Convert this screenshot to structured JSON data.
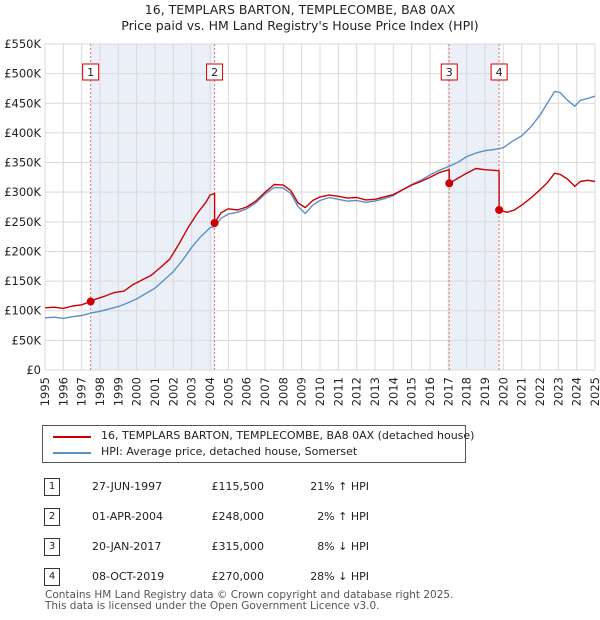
{
  "title": {
    "line1": "16, TEMPLARS BARTON, TEMPLECOMBE, BA8 0AX",
    "line2": "Price paid vs. HM Land Registry's House Price Index (HPI)"
  },
  "chart_data": {
    "type": "line",
    "title": "16, TEMPLARS BARTON, TEMPLECOMBE, BA8 0AX — Price paid vs. HM Land Registry's House Price Index (HPI)",
    "x_range": [
      1995,
      2025
    ],
    "y_range": [
      0,
      550000
    ],
    "y_ticks": [
      {
        "value": 0,
        "label": "£0"
      },
      {
        "value": 50000,
        "label": "£50K"
      },
      {
        "value": 100000,
        "label": "£100K"
      },
      {
        "value": 150000,
        "label": "£150K"
      },
      {
        "value": 200000,
        "label": "£200K"
      },
      {
        "value": 250000,
        "label": "£250K"
      },
      {
        "value": 300000,
        "label": "£300K"
      },
      {
        "value": 350000,
        "label": "£350K"
      },
      {
        "value": 400000,
        "label": "£400K"
      },
      {
        "value": 450000,
        "label": "£450K"
      },
      {
        "value": 500000,
        "label": "£500K"
      },
      {
        "value": 550000,
        "label": "£550K"
      }
    ],
    "x_ticks": [
      "1995",
      "1996",
      "1997",
      "1998",
      "1999",
      "2000",
      "2001",
      "2002",
      "2003",
      "2004",
      "2005",
      "2006",
      "2007",
      "2008",
      "2009",
      "2010",
      "2011",
      "2012",
      "2013",
      "2014",
      "2015",
      "2016",
      "2017",
      "2018",
      "2019",
      "2020",
      "2021",
      "2022",
      "2023",
      "2024",
      "2025"
    ],
    "grid": true,
    "series": [
      {
        "name": "16, TEMPLARS BARTON, TEMPLECOMBE, BA8 0AX (detached house)",
        "color": "#cc0000",
        "points": [
          [
            1995.0,
            105000
          ],
          [
            1995.5,
            106000
          ],
          [
            1996.0,
            104000
          ],
          [
            1996.5,
            108000
          ],
          [
            1997.0,
            110000
          ],
          [
            1997.49,
            115500
          ],
          [
            1997.8,
            120000
          ],
          [
            1998.3,
            125000
          ],
          [
            1998.8,
            131000
          ],
          [
            1999.3,
            133000
          ],
          [
            1999.8,
            144000
          ],
          [
            2000.3,
            152000
          ],
          [
            2000.8,
            160000
          ],
          [
            2001.3,
            173000
          ],
          [
            2001.8,
            187000
          ],
          [
            2002.3,
            212000
          ],
          [
            2002.8,
            240000
          ],
          [
            2003.3,
            264000
          ],
          [
            2003.8,
            284000
          ],
          [
            2004.0,
            295000
          ],
          [
            2004.249,
            298000
          ],
          [
            2004.25,
            248000
          ],
          [
            2004.6,
            265000
          ],
          [
            2005.0,
            272000
          ],
          [
            2005.5,
            270000
          ],
          [
            2006.0,
            275000
          ],
          [
            2006.5,
            285000
          ],
          [
            2007.0,
            300000
          ],
          [
            2007.5,
            313000
          ],
          [
            2008.0,
            312000
          ],
          [
            2008.4,
            303000
          ],
          [
            2008.8,
            282000
          ],
          [
            2009.2,
            274000
          ],
          [
            2009.6,
            286000
          ],
          [
            2010.0,
            292000
          ],
          [
            2010.5,
            295000
          ],
          [
            2011.0,
            293000
          ],
          [
            2011.5,
            290000
          ],
          [
            2012.0,
            291000
          ],
          [
            2012.5,
            287000
          ],
          [
            2013.0,
            288000
          ],
          [
            2013.5,
            292000
          ],
          [
            2014.0,
            296000
          ],
          [
            2014.5,
            304000
          ],
          [
            2015.0,
            312000
          ],
          [
            2015.5,
            318000
          ],
          [
            2016.0,
            325000
          ],
          [
            2016.5,
            333000
          ],
          [
            2017.049,
            338000
          ],
          [
            2017.05,
            315000
          ],
          [
            2017.5,
            323000
          ],
          [
            2018.0,
            332000
          ],
          [
            2018.5,
            340000
          ],
          [
            2019.0,
            338000
          ],
          [
            2019.5,
            337000
          ],
          [
            2019.769,
            336000
          ],
          [
            2019.77,
            270000
          ],
          [
            2020.2,
            266000
          ],
          [
            2020.6,
            270000
          ],
          [
            2021.0,
            278000
          ],
          [
            2021.5,
            290000
          ],
          [
            2022.0,
            304000
          ],
          [
            2022.4,
            316000
          ],
          [
            2022.8,
            332000
          ],
          [
            2023.1,
            330000
          ],
          [
            2023.5,
            322000
          ],
          [
            2023.9,
            310000
          ],
          [
            2024.2,
            318000
          ],
          [
            2024.6,
            320000
          ],
          [
            2025.0,
            318000
          ]
        ]
      },
      {
        "name": "HPI: Average price, detached house, Somerset",
        "color": "#5b8fc9",
        "points": [
          [
            1995.0,
            88000
          ],
          [
            1995.5,
            89000
          ],
          [
            1996.0,
            87000
          ],
          [
            1996.5,
            90000
          ],
          [
            1997.0,
            92000
          ],
          [
            1997.5,
            96000
          ],
          [
            1998.0,
            99000
          ],
          [
            1998.5,
            103000
          ],
          [
            1999.0,
            107000
          ],
          [
            1999.5,
            113000
          ],
          [
            2000.0,
            120000
          ],
          [
            2000.5,
            129000
          ],
          [
            2001.0,
            138000
          ],
          [
            2001.5,
            152000
          ],
          [
            2002.0,
            166000
          ],
          [
            2002.5,
            185000
          ],
          [
            2003.0,
            207000
          ],
          [
            2003.5,
            225000
          ],
          [
            2004.0,
            240000
          ],
          [
            2004.25,
            242000
          ],
          [
            2004.6,
            256000
          ],
          [
            2005.0,
            263000
          ],
          [
            2005.5,
            266000
          ],
          [
            2006.0,
            272000
          ],
          [
            2006.5,
            282000
          ],
          [
            2007.0,
            297000
          ],
          [
            2007.5,
            308000
          ],
          [
            2008.0,
            307000
          ],
          [
            2008.4,
            298000
          ],
          [
            2008.8,
            276000
          ],
          [
            2009.2,
            264000
          ],
          [
            2009.6,
            278000
          ],
          [
            2010.0,
            286000
          ],
          [
            2010.5,
            291000
          ],
          [
            2011.0,
            288000
          ],
          [
            2011.5,
            285000
          ],
          [
            2012.0,
            286000
          ],
          [
            2012.5,
            283000
          ],
          [
            2013.0,
            285000
          ],
          [
            2013.5,
            289000
          ],
          [
            2014.0,
            294000
          ],
          [
            2014.5,
            304000
          ],
          [
            2015.0,
            313000
          ],
          [
            2015.5,
            320000
          ],
          [
            2016.0,
            329000
          ],
          [
            2016.5,
            337000
          ],
          [
            2017.0,
            343000
          ],
          [
            2017.5,
            350000
          ],
          [
            2018.0,
            360000
          ],
          [
            2018.5,
            366000
          ],
          [
            2019.0,
            370000
          ],
          [
            2019.5,
            372000
          ],
          [
            2020.0,
            375000
          ],
          [
            2020.5,
            386000
          ],
          [
            2021.0,
            395000
          ],
          [
            2021.5,
            410000
          ],
          [
            2022.0,
            430000
          ],
          [
            2022.4,
            450000
          ],
          [
            2022.8,
            470000
          ],
          [
            2023.1,
            468000
          ],
          [
            2023.5,
            455000
          ],
          [
            2023.9,
            445000
          ],
          [
            2024.2,
            455000
          ],
          [
            2024.6,
            458000
          ],
          [
            2025.0,
            462000
          ]
        ]
      }
    ],
    "sales": [
      {
        "id": "1",
        "x": 1997.49,
        "price": 115500,
        "date": "27-JUN-1997",
        "price_label": "£115,500",
        "hpi_label": "21% ↑ HPI"
      },
      {
        "id": "2",
        "x": 2004.25,
        "price": 248000,
        "date": "01-APR-2004",
        "price_label": "£248,000",
        "hpi_label": "2% ↑ HPI"
      },
      {
        "id": "3",
        "x": 2017.05,
        "price": 315000,
        "date": "20-JAN-2017",
        "price_label": "£315,000",
        "hpi_label": "8% ↓ HPI"
      },
      {
        "id": "4",
        "x": 2019.77,
        "price": 270000,
        "date": "08-OCT-2019",
        "price_label": "£270,000",
        "hpi_label": "28% ↓ HPI"
      }
    ],
    "shading": [
      [
        1997.49,
        2004.25
      ],
      [
        2017.05,
        2019.77
      ]
    ]
  },
  "legend": {
    "property_label": "16, TEMPLARS BARTON, TEMPLECOMBE, BA8 0AX (detached house)",
    "hpi_label": "HPI: Average price, detached house, Somerset",
    "property_color": "#cc0000",
    "hpi_color": "#5b8fc9"
  },
  "footer": {
    "line1": "Contains HM Land Registry data © Crown copyright and database right 2025.",
    "line2": "This data is licensed under the Open Government Licence v3.0."
  }
}
